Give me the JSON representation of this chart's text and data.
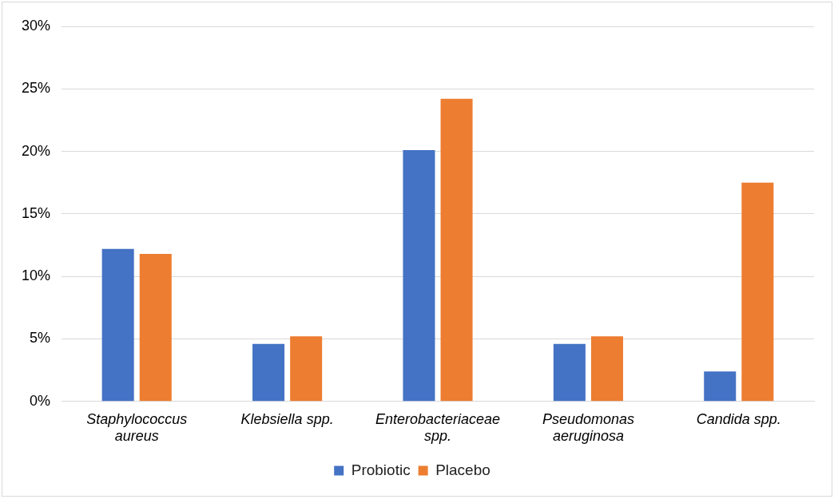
{
  "chart_data": {
    "type": "bar",
    "categories": [
      "Staphylococcus aureus",
      "Klebsiella spp.",
      "Enterobacteriaceae spp.",
      "Pseudomonas aeruginosa",
      "Candida spp."
    ],
    "series": [
      {
        "name": "Probiotic",
        "color": "#4472c4",
        "values": [
          12.2,
          4.6,
          20.1,
          4.6,
          2.4
        ]
      },
      {
        "name": "Placebo",
        "color": "#ed7d31",
        "values": [
          11.8,
          5.2,
          24.2,
          5.2,
          17.5
        ]
      }
    ],
    "ylim": [
      0,
      30
    ],
    "yticks": [
      {
        "value": 0,
        "label": "0%"
      },
      {
        "value": 5,
        "label": "5%"
      },
      {
        "value": 10,
        "label": "10%"
      },
      {
        "value": 15,
        "label": "15%"
      },
      {
        "value": 20,
        "label": "20%"
      },
      {
        "value": 25,
        "label": "25%"
      },
      {
        "value": 30,
        "label": "30%"
      }
    ],
    "grid": "y",
    "legend": "bottom"
  }
}
